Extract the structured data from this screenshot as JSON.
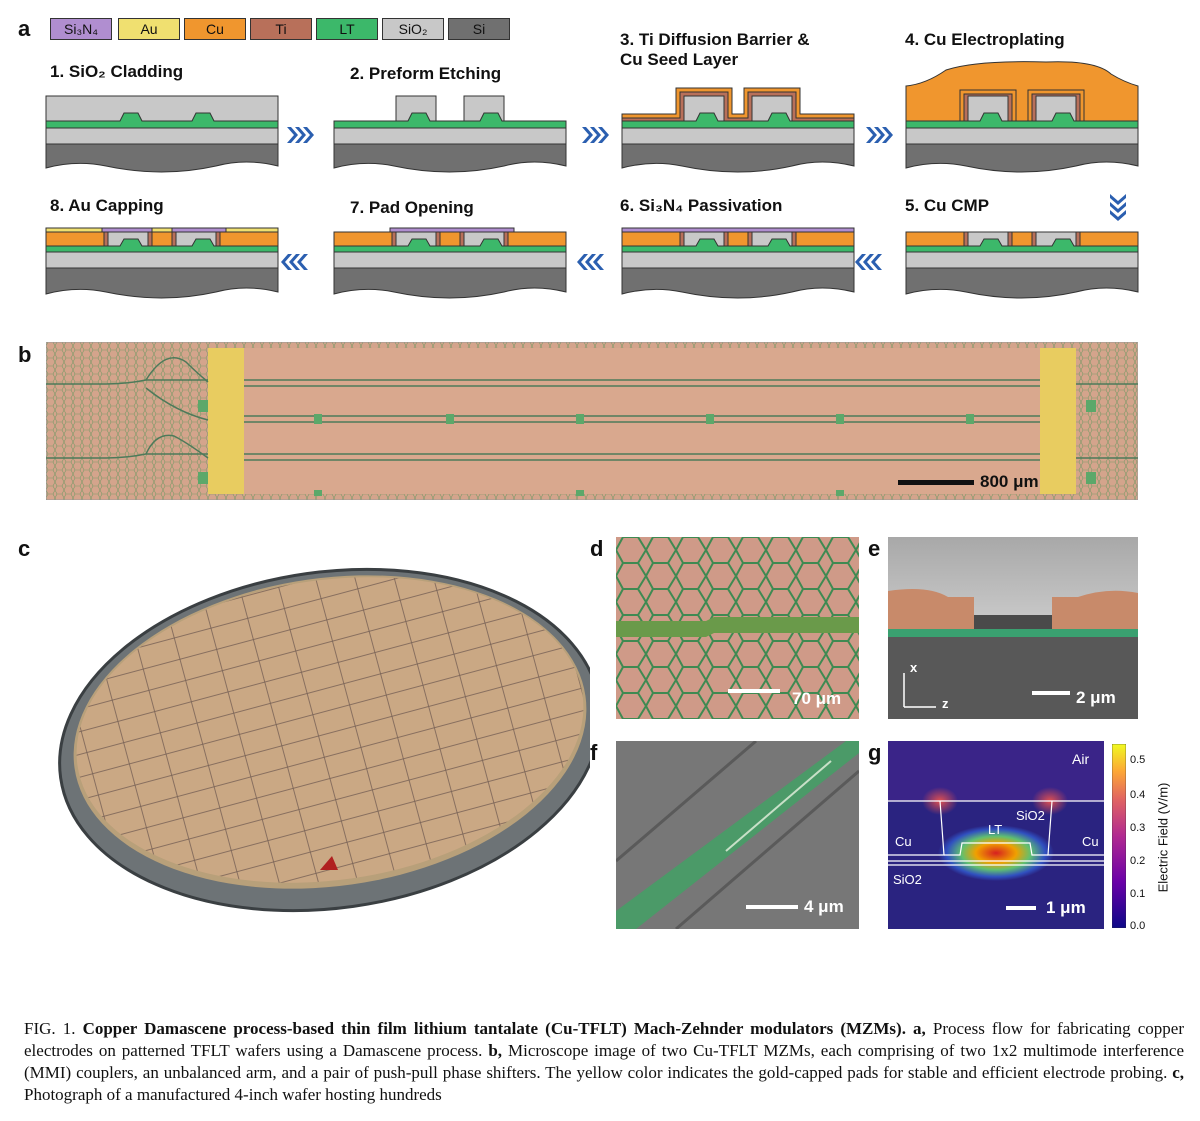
{
  "panel_labels": {
    "a": "a",
    "b": "b",
    "c": "c",
    "d": "d",
    "e": "e",
    "f": "f",
    "g": "g"
  },
  "legend": [
    {
      "label": "Si₃N₄",
      "color": "#b08ed0"
    },
    {
      "label": "Au",
      "color": "#f0e070"
    },
    {
      "label": "Cu",
      "color": "#f0962e"
    },
    {
      "label": "Ti",
      "color": "#b8705a"
    },
    {
      "label": "LT",
      "color": "#3cb86a"
    },
    {
      "label": "SiO₂",
      "color": "#c8c8c8"
    },
    {
      "label": "Si",
      "color": "#707070"
    }
  ],
  "steps": [
    "1. SiO₂ Cladding",
    "2. Preform Etching",
    "3. Ti Diffusion Barrier &\nCu Seed Layer",
    "4. Cu Electroplating",
    "5. Cu CMP",
    "6. Si₃N₄ Passivation",
    "7. Pad Opening",
    "8. Au Capping"
  ],
  "scale_bars": {
    "b": "800 μm",
    "d": "70 μm",
    "e": "2 μm",
    "f": "4 μm",
    "g": "1 μm"
  },
  "axes_e": {
    "x": "x",
    "z": "z"
  },
  "panel_g": {
    "air": "Air",
    "sio2_top": "SiO2",
    "sio2_bottom": "SiO2",
    "cu_left": "Cu",
    "cu_right": "Cu",
    "lt": "LT",
    "colorbar_title": "Electric Field (V/m)",
    "colorbar_ticks": [
      "0.5",
      "0.4",
      "0.3",
      "0.2",
      "0.1",
      "0.0"
    ]
  },
  "caption": {
    "fig": "FIG. 1.",
    "title": "Copper Damascene process-based thin film lithium tantalate (Cu-TFLT) Mach-Zehnder modulators (MZMs).",
    "a_label": "a,",
    "a_text": "Process flow for fabricating copper electrodes on patterned TFLT wafers using a Damascene process.",
    "b_label": "b,",
    "b_text": "Microscope image of two Cu-TFLT MZMs, each comprising of two 1x2 multimode interference (MMI) couplers, an unbalanced arm, and a pair of push-pull phase shifters. The yellow color indicates the gold-capped pads for stable and efficient electrode probing.",
    "c_label": "c,",
    "c_text": "Photograph of a manufactured 4-inch wafer hosting hundreds"
  }
}
